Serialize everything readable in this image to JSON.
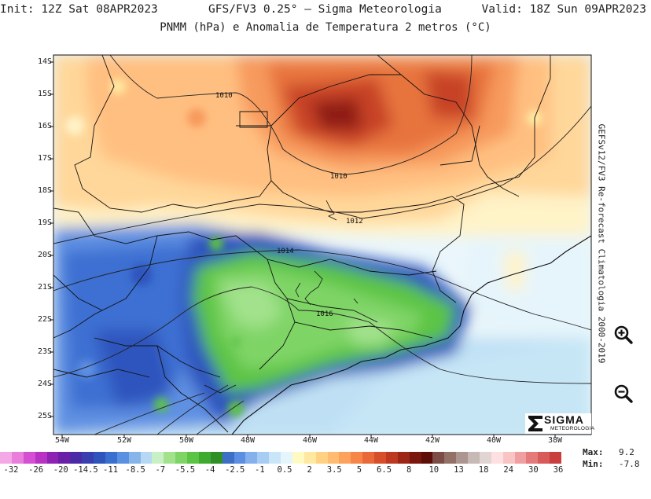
{
  "header": {
    "init": "Init: 12Z Sat 08APR2023",
    "model": "GFS/FV3 0.25° — Sigma Meteorologia",
    "valid": "Valid: 18Z Sun 09APR2023",
    "title": "PNMM (hPa) e Anomalia de Temperatura 2 metros (°C)"
  },
  "side_label": "GEFSv12/FV3 Re-forecast Climatologia 2000-2019",
  "lat_labels": [
    "14S",
    "15S",
    "16S",
    "17S",
    "18S",
    "19S",
    "20S",
    "21S",
    "22S",
    "23S",
    "24S",
    "25S"
  ],
  "lon_labels": [
    "54W",
    "52W",
    "50W",
    "48W",
    "46W",
    "44W",
    "42W",
    "40W",
    "38W"
  ],
  "isobars": [
    "1010",
    "1010",
    "1012",
    "1014",
    "1016"
  ],
  "logo": {
    "word": "SIGMA",
    "sub": "METEOROLOGIA"
  },
  "stats": {
    "max_label": "Max:",
    "max_value": "9.2",
    "min_label": "Min:",
    "min_value": "-7.8"
  },
  "colorbar": {
    "ticks": [
      "-32",
      "-26",
      "-20",
      "-14.5",
      "-11",
      "-8.5",
      "-7",
      "-5.5",
      "-4",
      "-2.5",
      "-1",
      "0.5",
      "2",
      "3.5",
      "5",
      "6.5",
      "8",
      "10",
      "13",
      "18",
      "24",
      "30",
      "36"
    ],
    "colors": [
      "#f5a8e6",
      "#e97fdb",
      "#d44fd1",
      "#b832c4",
      "#8d22b3",
      "#6a1fa7",
      "#4c2aa6",
      "#3a3fb0",
      "#2f55bd",
      "#3970d0",
      "#5991e0",
      "#86b5ea",
      "#b6d8f4",
      "#c8f0c4",
      "#a2e28c",
      "#7fd466",
      "#5cc444",
      "#3eab30",
      "#2e8f25",
      "#3d6fc6",
      "#5c8fe2",
      "#84b1ec",
      "#a8cdf2",
      "#c9e6f8",
      "#e4f5fb",
      "#fffac2",
      "#ffe9a0",
      "#ffd283",
      "#ffbb6f",
      "#fca25c",
      "#f68648",
      "#e96a38",
      "#d64f2a",
      "#bd3820",
      "#9c2516",
      "#7a170d",
      "#5e0e08",
      "#7b4d44",
      "#937167",
      "#ad9590",
      "#c7bab6",
      "#e0d5d2",
      "#ffe0e0",
      "#f8c4c4",
      "#ef9f9f",
      "#e57a7a",
      "#d85a5a",
      "#c93e3e"
    ]
  },
  "controls": {
    "zoom_in": "zoom-in",
    "zoom_out": "zoom-out"
  }
}
